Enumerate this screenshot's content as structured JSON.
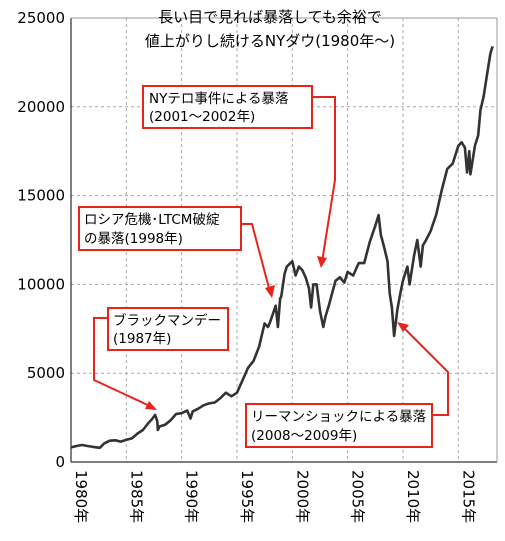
{
  "chart_data": {
    "type": "line",
    "title_lines": [
      "長い目で見れば暴落しても余裕で",
      "値上がりし続けるNYダウ(1980年～)"
    ],
    "xlabel": "",
    "ylabel": "",
    "xlim": [
      1980,
      2018.5
    ],
    "ylim": [
      0,
      25000
    ],
    "y_ticks": [
      0,
      5000,
      10000,
      15000,
      20000,
      25000
    ],
    "y_tick_labels": [
      "0",
      "5000",
      "10000",
      "15000",
      "20000",
      "25000"
    ],
    "x_ticks": [
      1980,
      1985,
      1990,
      1995,
      2000,
      2005,
      2010,
      2015
    ],
    "x_tick_labels": [
      "1980年",
      "1985年",
      "1990年",
      "1995年",
      "2000年",
      "2005年",
      "2010年",
      "2015年"
    ],
    "grid": true,
    "series": [
      {
        "name": "",
        "color": "#333333",
        "x": [
          1980.0,
          1980.5,
          1981.0,
          1981.5,
          1982.0,
          1982.6,
          1983.0,
          1983.5,
          1984.0,
          1984.5,
          1985.0,
          1985.5,
          1986.0,
          1986.5,
          1987.0,
          1987.3,
          1987.6,
          1987.8,
          1987.85,
          1988.0,
          1988.5,
          1989.0,
          1989.5,
          1990.0,
          1990.5,
          1990.8,
          1991.0,
          1991.5,
          1992.0,
          1992.5,
          1993.0,
          1993.5,
          1994.0,
          1994.5,
          1995.0,
          1995.5,
          1996.0,
          1996.5,
          1997.0,
          1997.5,
          1997.8,
          1998.0,
          1998.5,
          1998.7,
          1998.9,
          1999.0,
          1999.3,
          1999.5,
          2000.0,
          2000.3,
          2000.6,
          2000.9,
          2001.2,
          2001.5,
          2001.7,
          2001.9,
          2002.2,
          2002.5,
          2002.8,
          2003.0,
          2003.3,
          2003.6,
          2003.9,
          2004.3,
          2004.7,
          2005.0,
          2005.5,
          2006.0,
          2006.5,
          2007.0,
          2007.5,
          2007.8,
          2008.0,
          2008.3,
          2008.6,
          2008.8,
          2009.0,
          2009.2,
          2009.5,
          2009.8,
          2010.0,
          2010.4,
          2010.6,
          2011.0,
          2011.3,
          2011.6,
          2011.8,
          2012.0,
          2012.5,
          2013.0,
          2013.5,
          2014.0,
          2014.5,
          2015.0,
          2015.3,
          2015.6,
          2015.8,
          2016.0,
          2016.1,
          2016.5,
          2016.8,
          2017.0,
          2017.3,
          2017.6,
          2017.9,
          2018.1
        ],
        "values": [
          820,
          900,
          960,
          900,
          850,
          800,
          1050,
          1200,
          1220,
          1150,
          1250,
          1330,
          1600,
          1800,
          2200,
          2400,
          2650,
          2300,
          1800,
          2000,
          2100,
          2350,
          2700,
          2750,
          2900,
          2450,
          2850,
          3000,
          3200,
          3300,
          3350,
          3600,
          3900,
          3700,
          3900,
          4600,
          5300,
          5700,
          6500,
          7800,
          7600,
          7900,
          8800,
          7600,
          9200,
          9300,
          10600,
          11000,
          11300,
          10500,
          11000,
          10800,
          10400,
          9800,
          8700,
          10000,
          10000,
          8500,
          7600,
          8200,
          8800,
          9500,
          10200,
          10400,
          10100,
          10700,
          10500,
          11200,
          11200,
          12400,
          13300,
          13900,
          12800,
          12100,
          11300,
          9500,
          8700,
          7100,
          8600,
          9600,
          10200,
          11000,
          10000,
          11600,
          12500,
          11000,
          12200,
          12400,
          13000,
          13900,
          15300,
          16500,
          16800,
          17800,
          18000,
          17700,
          16300,
          17500,
          16200,
          17800,
          18400,
          19800,
          20600,
          21800,
          23000,
          23400
        ]
      }
    ],
    "annotations": [
      {
        "lines": [
          "NYテロ事件による暴落",
          "(2001～2002年)"
        ]
      },
      {
        "lines": [
          "ロシア危機･LTCM破綻",
          "の暴落(1998年)"
        ]
      },
      {
        "lines": [
          "ブラックマンデー",
          "(1987年)"
        ]
      },
      {
        "lines": [
          "リーマンショックによる暴落",
          "(2008～2009年)"
        ]
      }
    ]
  }
}
